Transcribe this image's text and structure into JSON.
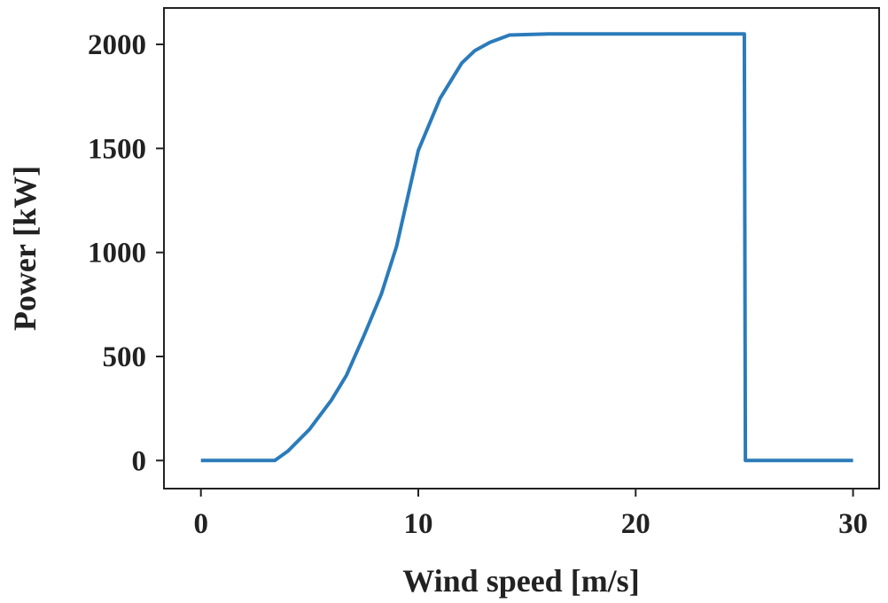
{
  "chart_data": {
    "type": "line",
    "title": "",
    "xlabel": "Wind speed [m/s]",
    "ylabel": "Power [kW]",
    "xlim": [
      -1.7,
      31.2
    ],
    "ylim": [
      -135,
      2175
    ],
    "xticks": [
      0,
      10,
      20,
      30
    ],
    "yticks": [
      0,
      500,
      1000,
      1500,
      2000
    ],
    "grid": false,
    "line_color": "#2b7bba",
    "series": [
      {
        "x": [
          0,
          3.4,
          4,
          5,
          6,
          6.7,
          7.5,
          8.3,
          9,
          10,
          11,
          12,
          12.6,
          13.3,
          14.2,
          16,
          20,
          25,
          25.05,
          30
        ],
        "y": [
          0,
          0,
          45,
          150,
          290,
          410,
          600,
          800,
          1030,
          1490,
          1740,
          1910,
          1970,
          2010,
          2045,
          2050,
          2050,
          2050,
          0,
          0
        ]
      }
    ]
  }
}
